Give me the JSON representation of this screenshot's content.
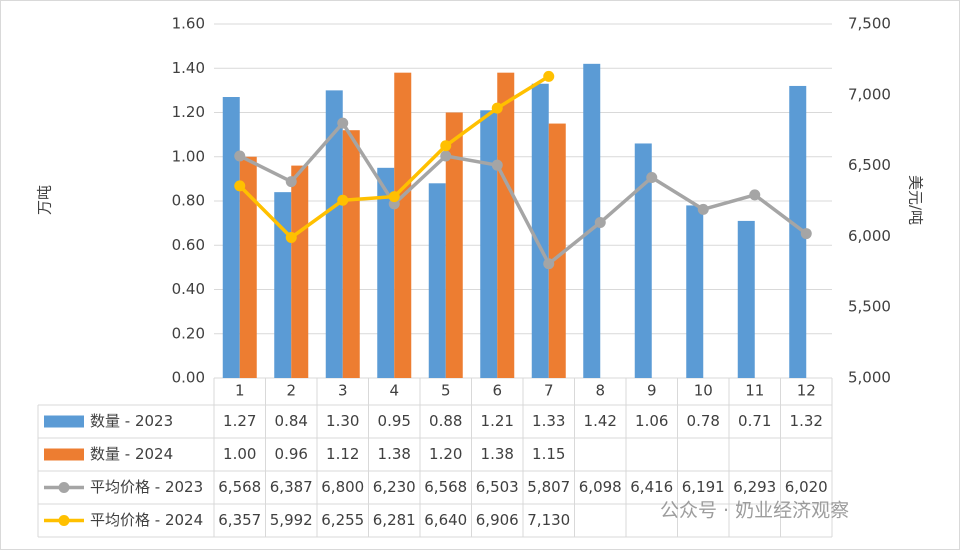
{
  "chart_data": {
    "type": "bar",
    "y_label": "万吨",
    "y2_label": "美元/吨",
    "watermark": "公众号 · 奶业经济观察",
    "categories": [
      "1",
      "2",
      "3",
      "4",
      "5",
      "6",
      "7",
      "8",
      "9",
      "10",
      "11",
      "12"
    ],
    "ylim": [
      0,
      1.6
    ],
    "yticks": [
      {
        "value": 0,
        "label": "0.00"
      },
      {
        "value": 0.2,
        "label": "0.20"
      },
      {
        "value": 0.4,
        "label": "0.40"
      },
      {
        "value": 0.6,
        "label": "0.60"
      },
      {
        "value": 0.8,
        "label": "0.80"
      },
      {
        "value": 1,
        "label": "1.00"
      },
      {
        "value": 1.2,
        "label": "1.20"
      },
      {
        "value": 1.4,
        "label": "1.40"
      },
      {
        "value": 1.6,
        "label": "1.60"
      }
    ],
    "y2lim": [
      5000,
      7500
    ],
    "y2ticks": [
      {
        "value": 5000,
        "label": "5,000"
      },
      {
        "value": 5500,
        "label": "5,500"
      },
      {
        "value": 6000,
        "label": "6,000"
      },
      {
        "value": 6500,
        "label": "6,500"
      },
      {
        "value": 7000,
        "label": "7,000"
      },
      {
        "value": 7500,
        "label": "7,500"
      }
    ],
    "grid": true,
    "series": [
      {
        "name": "数量 - 2023",
        "type": "bar",
        "color": "#5b9bd5",
        "values": [
          1.27,
          0.84,
          1.3,
          0.95,
          0.88,
          1.21,
          1.33,
          1.42,
          1.06,
          0.78,
          0.71,
          1.32
        ],
        "value_labels": [
          "1.27",
          "0.84",
          "1.30",
          "0.95",
          "0.88",
          "1.21",
          "1.33",
          "1.42",
          "1.06",
          "0.78",
          "0.71",
          "1.32"
        ]
      },
      {
        "name": "数量 - 2024",
        "type": "bar",
        "color": "#ed7d31",
        "values": [
          1.0,
          0.96,
          1.12,
          1.38,
          1.2,
          1.38,
          1.15,
          null,
          null,
          null,
          null,
          null
        ],
        "value_labels": [
          "1.00",
          "0.96",
          "1.12",
          "1.38",
          "1.20",
          "1.38",
          "1.15",
          null,
          null,
          null,
          null,
          null
        ]
      },
      {
        "name": "平均价格 - 2023",
        "type": "line",
        "axis": "y2",
        "color": "#a5a5a5",
        "values": [
          6568,
          6387,
          6800,
          6230,
          6568,
          6503,
          5807,
          6098,
          6416,
          6191,
          6293,
          6020
        ],
        "value_labels": [
          "6,568",
          "6,387",
          "6,800",
          "6,230",
          "6,568",
          "6,503",
          "5,807",
          "6,098",
          "6,416",
          "6,191",
          "6,293",
          "6,020"
        ]
      },
      {
        "name": "平均价格 - 2024",
        "type": "line",
        "axis": "y2",
        "color": "#ffc000",
        "values": [
          6357,
          5992,
          6255,
          6281,
          6640,
          6906,
          7130,
          null,
          null,
          null,
          null,
          null
        ],
        "value_labels": [
          "6,357",
          "5,992",
          "6,255",
          "6,281",
          "6,640",
          "6,906",
          "7,130",
          null,
          null,
          null,
          null,
          null
        ]
      }
    ]
  }
}
